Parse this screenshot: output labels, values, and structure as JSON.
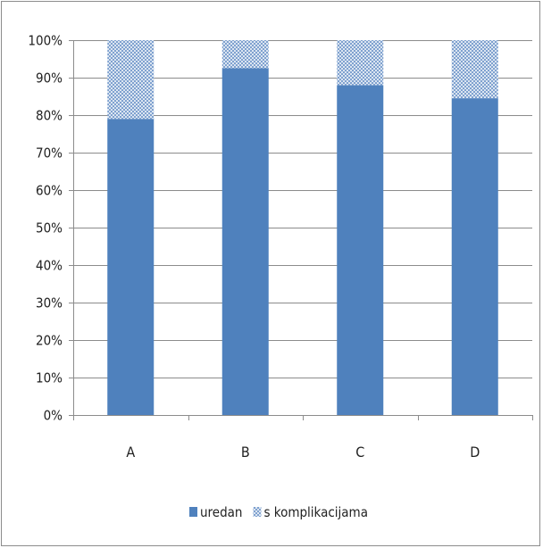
{
  "chart_data": {
    "type": "bar",
    "stacked": true,
    "percent": true,
    "categories": [
      "A",
      "B",
      "C",
      "D"
    ],
    "series": [
      {
        "name": "uredan",
        "values": [
          79,
          92.5,
          88,
          84.5
        ],
        "color": "#4f81bd",
        "pattern": "solid"
      },
      {
        "name": "s komplikacijama",
        "values": [
          21,
          7.5,
          12,
          15.5
        ],
        "color": "#4f81bd",
        "pattern": "checker"
      }
    ],
    "y_ticks": [
      "0%",
      "10%",
      "20%",
      "30%",
      "40%",
      "50%",
      "60%",
      "70%",
      "80%",
      "90%",
      "100%"
    ],
    "ylim": [
      0,
      100
    ],
    "grid": true,
    "legend_position": "bottom",
    "title": "",
    "xlabel": "",
    "ylabel": ""
  }
}
